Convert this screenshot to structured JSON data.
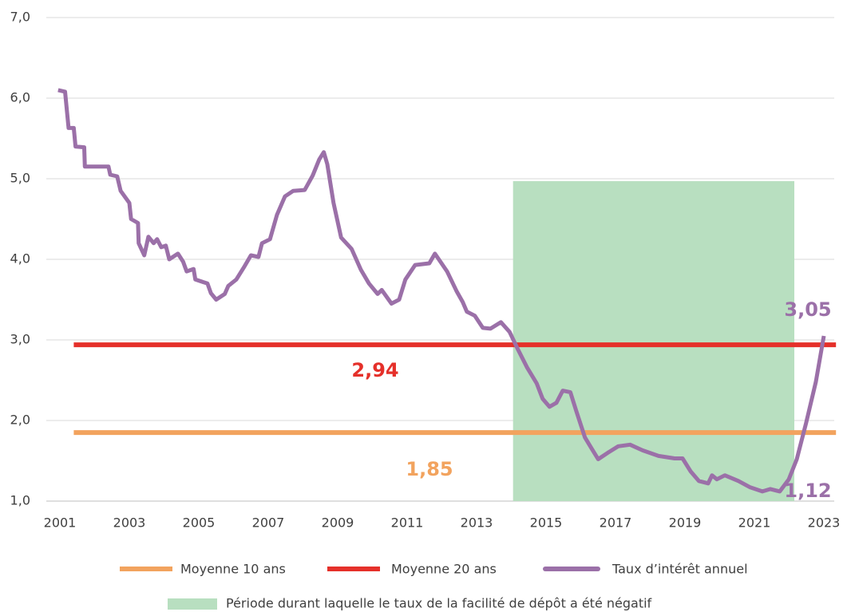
{
  "chart_data": {
    "type": "line",
    "xlim": [
      2001,
      2023
    ],
    "xticks": [
      2001,
      2003,
      2005,
      2007,
      2009,
      2011,
      2013,
      2015,
      2017,
      2019,
      2021,
      2023
    ],
    "ylim": [
      1,
      7
    ],
    "yticks": [
      {
        "value": 1,
        "label": "1,0"
      },
      {
        "value": 2,
        "label": "2,0"
      },
      {
        "value": 3,
        "label": "3,0"
      },
      {
        "value": 4,
        "label": "4,0"
      },
      {
        "value": 5,
        "label": "5,0"
      },
      {
        "value": 6,
        "label": "6,0"
      },
      {
        "value": 7,
        "label": "7,0"
      }
    ],
    "grid": true,
    "shaded_region": {
      "name": "Période durant laquelle le taux de la facilité de dépôt a été négatif",
      "color": "#b8dfc0",
      "x": [
        2014.05,
        2022.15
      ],
      "ytop": 4.97
    },
    "series": [
      {
        "name": "Moyenne 10 ans",
        "color": "#f2a35e",
        "x": [
          2001.4,
          2023.35
        ],
        "values": [
          1.85,
          1.85
        ],
        "value_labels": [
          "1,85",
          null
        ]
      },
      {
        "name": "Moyenne 20 ans",
        "color": "#e5302a",
        "x": [
          2001.4,
          2023.35
        ],
        "values": [
          2.94,
          2.94
        ],
        "value_labels": [
          "2,94",
          null
        ]
      },
      {
        "name": "Taux d’intérêt annuel",
        "color": "#9b70a8",
        "x": [
          2000.95,
          2001.15,
          2001.25,
          2001.4,
          2001.45,
          2001.7,
          2001.72,
          2002.4,
          2002.45,
          2002.65,
          2002.75,
          2003.0,
          2003.05,
          2003.25,
          2003.27,
          2003.43,
          2003.55,
          2003.7,
          2003.8,
          2003.92,
          2004.05,
          2004.15,
          2004.4,
          2004.55,
          2004.65,
          2004.85,
          2004.9,
          2005.25,
          2005.35,
          2005.5,
          2005.75,
          2005.85,
          2006.08,
          2006.3,
          2006.5,
          2006.72,
          2006.82,
          2007.05,
          2007.25,
          2007.48,
          2007.72,
          2008.05,
          2008.28,
          2008.47,
          2008.6,
          2008.7,
          2008.88,
          2009.1,
          2009.4,
          2009.67,
          2009.9,
          2010.15,
          2010.27,
          2010.55,
          2010.77,
          2010.95,
          2011.23,
          2011.64,
          2011.8,
          2012.15,
          2012.43,
          2012.6,
          2012.72,
          2012.95,
          2013.18,
          2013.4,
          2013.7,
          2013.95,
          2014.17,
          2014.45,
          2014.73,
          2014.9,
          2015.1,
          2015.3,
          2015.48,
          2015.7,
          2015.87,
          2016.12,
          2016.33,
          2016.5,
          2016.78,
          2017.08,
          2017.42,
          2017.78,
          2018.24,
          2018.7,
          2018.93,
          2019.16,
          2019.4,
          2019.67,
          2019.78,
          2019.92,
          2020.15,
          2020.54,
          2020.88,
          2021.23,
          2021.46,
          2021.73,
          2021.99,
          2022.22,
          2022.49,
          2022.77,
          2023.0
        ],
        "values": [
          6.1,
          6.08,
          5.63,
          5.63,
          5.4,
          5.39,
          5.15,
          5.15,
          5.05,
          5.03,
          4.85,
          4.7,
          4.5,
          4.45,
          4.2,
          4.05,
          4.28,
          4.2,
          4.25,
          4.15,
          4.17,
          4.0,
          4.07,
          3.97,
          3.85,
          3.88,
          3.75,
          3.7,
          3.58,
          3.5,
          3.57,
          3.67,
          3.75,
          3.9,
          4.05,
          4.03,
          4.2,
          4.25,
          4.55,
          4.78,
          4.85,
          4.86,
          5.04,
          5.24,
          5.33,
          5.18,
          4.7,
          4.27,
          4.13,
          3.87,
          3.7,
          3.57,
          3.62,
          3.45,
          3.5,
          3.75,
          3.93,
          3.95,
          4.07,
          3.85,
          3.6,
          3.47,
          3.35,
          3.3,
          3.15,
          3.14,
          3.22,
          3.1,
          2.9,
          2.66,
          2.46,
          2.27,
          2.17,
          2.22,
          2.37,
          2.35,
          2.12,
          1.79,
          1.64,
          1.52,
          1.6,
          1.68,
          1.7,
          1.63,
          1.56,
          1.53,
          1.53,
          1.37,
          1.25,
          1.22,
          1.32,
          1.27,
          1.32,
          1.25,
          1.17,
          1.12,
          1.15,
          1.12,
          1.27,
          1.52,
          1.97,
          2.48,
          3.05
        ],
        "value_labels": [
          null,
          null,
          null,
          null,
          null,
          null,
          null,
          null,
          null,
          null,
          null,
          null,
          null,
          null,
          null,
          null,
          null,
          null,
          null,
          null,
          null,
          null,
          null,
          null,
          null,
          null,
          null,
          null,
          null,
          null,
          null,
          null,
          null,
          null,
          null,
          null,
          null,
          null,
          null,
          null,
          null,
          null,
          null,
          null,
          null,
          null,
          null,
          null,
          null,
          null,
          null,
          null,
          null,
          null,
          null,
          null,
          null,
          null,
          null,
          null,
          null,
          null,
          null,
          null,
          null,
          null,
          null,
          null,
          null,
          null,
          null,
          null,
          null,
          null,
          null,
          null,
          null,
          null,
          null,
          null,
          null,
          null,
          null,
          null,
          null,
          null,
          null,
          null,
          null,
          null,
          null,
          null,
          null,
          null,
          null,
          null,
          null,
          "1,12",
          null,
          null,
          null,
          null,
          "3,05"
        ]
      }
    ]
  }
}
